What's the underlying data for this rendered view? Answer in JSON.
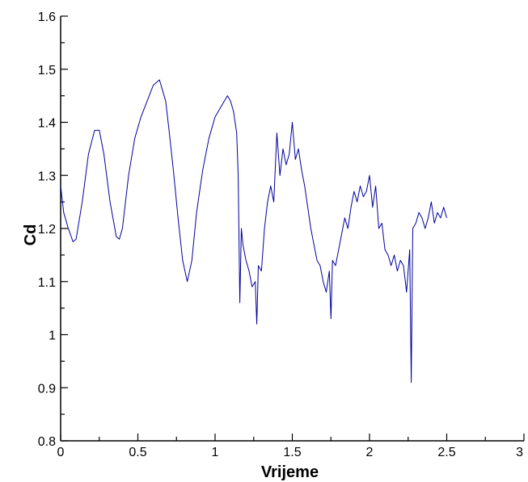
{
  "chart_data": {
    "type": "line",
    "xlabel": "Vrijeme",
    "ylabel": "Cd",
    "xlim": [
      0,
      3
    ],
    "ylim": [
      0.8,
      1.6
    ],
    "x_ticks": [
      0,
      0.5,
      1,
      1.5,
      2,
      2.5,
      3
    ],
    "x_tick_labels": [
      "0",
      "0.5",
      "1",
      "1.5",
      "2",
      "2.5",
      "3"
    ],
    "y_ticks": [
      0.8,
      0.9,
      1.0,
      1.1,
      1.2,
      1.3,
      1.4,
      1.5,
      1.6
    ],
    "y_tick_labels": [
      "0.8",
      "0.9",
      "1",
      "1.1",
      "1.2",
      "1.3",
      "1.4",
      "1.5",
      "1.6"
    ],
    "grid": false,
    "line_color": "#0000a0",
    "series": [
      {
        "x": [
          0.0,
          0.02,
          0.05,
          0.08,
          0.1,
          0.14,
          0.18,
          0.22,
          0.25,
          0.28,
          0.32,
          0.36,
          0.38,
          0.4,
          0.44,
          0.48,
          0.52,
          0.56,
          0.6,
          0.64,
          0.68,
          0.7,
          0.73,
          0.76,
          0.79,
          0.82,
          0.85,
          0.88,
          0.92,
          0.96,
          1.0,
          1.04,
          1.08,
          1.1,
          1.12,
          1.14,
          1.15,
          1.155,
          1.16,
          1.17,
          1.18,
          1.2,
          1.22,
          1.24,
          1.26,
          1.27,
          1.28,
          1.3,
          1.32,
          1.34,
          1.36,
          1.38,
          1.4,
          1.42,
          1.44,
          1.46,
          1.48,
          1.5,
          1.52,
          1.54,
          1.56,
          1.58,
          1.6,
          1.62,
          1.64,
          1.66,
          1.68,
          1.7,
          1.72,
          1.74,
          1.75,
          1.76,
          1.78,
          1.8,
          1.82,
          1.84,
          1.86,
          1.88,
          1.9,
          1.92,
          1.94,
          1.96,
          1.98,
          2.0,
          2.02,
          2.04,
          2.06,
          2.08,
          2.1,
          2.12,
          2.14,
          2.16,
          2.18,
          2.2,
          2.22,
          2.24,
          2.26,
          2.27,
          2.28,
          2.3,
          2.32,
          2.34,
          2.36,
          2.38,
          2.4,
          2.42,
          2.44,
          2.46,
          2.48,
          2.5
        ],
        "y": [
          1.28,
          1.23,
          1.2,
          1.175,
          1.18,
          1.25,
          1.34,
          1.385,
          1.385,
          1.34,
          1.25,
          1.185,
          1.18,
          1.2,
          1.3,
          1.37,
          1.41,
          1.44,
          1.47,
          1.48,
          1.44,
          1.39,
          1.31,
          1.22,
          1.14,
          1.1,
          1.14,
          1.23,
          1.31,
          1.37,
          1.41,
          1.43,
          1.45,
          1.44,
          1.42,
          1.38,
          1.3,
          1.18,
          1.06,
          1.2,
          1.17,
          1.14,
          1.12,
          1.09,
          1.1,
          1.02,
          1.13,
          1.12,
          1.2,
          1.25,
          1.28,
          1.25,
          1.38,
          1.3,
          1.35,
          1.32,
          1.34,
          1.4,
          1.33,
          1.35,
          1.31,
          1.28,
          1.24,
          1.2,
          1.17,
          1.14,
          1.13,
          1.1,
          1.08,
          1.12,
          1.03,
          1.14,
          1.13,
          1.16,
          1.19,
          1.22,
          1.2,
          1.24,
          1.27,
          1.25,
          1.28,
          1.26,
          1.27,
          1.3,
          1.24,
          1.28,
          1.2,
          1.21,
          1.16,
          1.15,
          1.13,
          1.15,
          1.12,
          1.14,
          1.13,
          1.08,
          1.16,
          0.91,
          1.2,
          1.21,
          1.23,
          1.22,
          1.2,
          1.22,
          1.25,
          1.21,
          1.23,
          1.22,
          1.24,
          1.22
        ]
      }
    ]
  }
}
